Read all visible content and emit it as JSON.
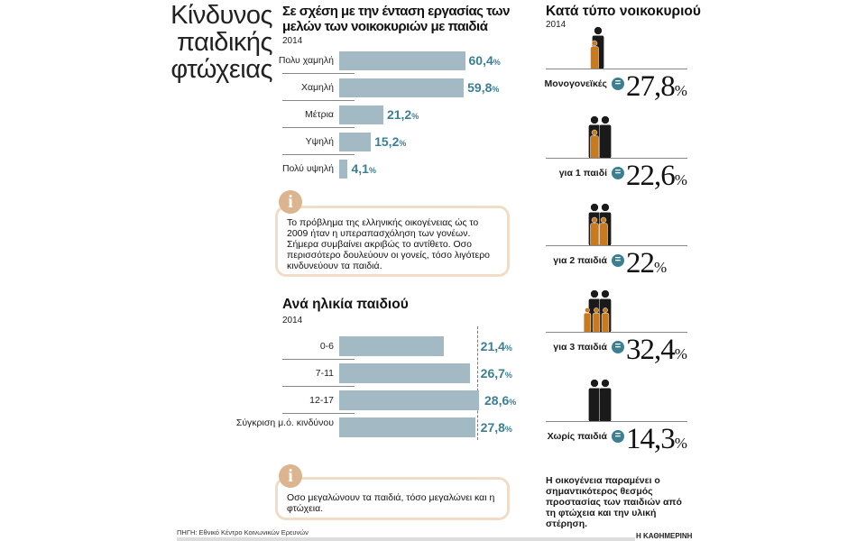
{
  "title": "Κίνδυνος παιδικής φτώχειας",
  "colors": {
    "bar": "#a3b9c4",
    "value": "#3b7f91",
    "info_border": "#f1dcc8",
    "info_icon": "#dcb48f",
    "child": "#c97a1e",
    "adult": "#1a1a1a"
  },
  "chart_data": [
    {
      "type": "bar",
      "orientation": "horizontal",
      "title": "Σε σχέση με την ένταση εργασίας των μελών των νοικοκυριών με παιδιά",
      "subtitle": "2014",
      "categories": [
        "Πολυ χαμηλή",
        "Χαμηλή",
        "Μέτρια",
        "Υψηλή",
        "Πολύ υψηλή"
      ],
      "values": [
        60.4,
        59.8,
        21.2,
        15.2,
        4.1
      ],
      "labels": [
        "60,4",
        "59,8",
        "21,2",
        "15,2",
        "4,1"
      ],
      "unit": "%"
    },
    {
      "type": "bar",
      "orientation": "horizontal",
      "title": "Ανά ηλικία παιδιού",
      "subtitle": "2014",
      "categories": [
        "0-6",
        "7-11",
        "12-17",
        "Σύγκριση μ.ό. κινδύνου"
      ],
      "values": [
        21.4,
        26.7,
        28.6,
        27.8
      ],
      "labels": [
        "21,4",
        "26,7",
        "28,6",
        "27,8"
      ],
      "unit": "%",
      "reference_line": 27.8
    },
    {
      "type": "table",
      "title": "Κατά τύπο νοικοκυριού",
      "subtitle": "2014",
      "categories": [
        "Μονογονεϊκές",
        "για 1 παιδί",
        "για 2 παιδιά",
        "για 3 παιδιά",
        "Χωρίς παιδιά"
      ],
      "values": [
        27.8,
        22.6,
        22,
        32.4,
        14.3
      ],
      "labels": [
        "27,8",
        "22,6",
        "22",
        "32,4",
        "14,3"
      ],
      "unit": "%",
      "icons": [
        {
          "adults": 1,
          "children": 1
        },
        {
          "adults": 2,
          "children": 1
        },
        {
          "adults": 2,
          "children": 2
        },
        {
          "adults": 2,
          "children": 3
        },
        {
          "adults": 2,
          "children": 0
        }
      ]
    }
  ],
  "info1": "Το πρόβλημα της ελληνικής οικογένειας ώς το 2009 ήταν η υπεραπασχόληση των γονέων. Σήμερα συμβαίνει ακριβώς το αντίθετο. Οσο περισσότερο δουλεύουν οι γονείς, τόσο λιγότερο κινδυνεύουν τα παιδιά.",
  "info2": "Οσο μεγαλώνουν τα παιδιά, τόσο μεγαλώνει και η φτώχεια.",
  "info_icon": "i",
  "equals": "=",
  "note": "Η οικογένεια παραμένει ο σημαντικότερος θεσμός προστασίας των παιδιών από τη φτώχεια και την υλική στέρηση.",
  "source": "ΠΗΓΗ: Εθνικό Κέντρο Κοινωνικών Ερευνών",
  "brand": "Η ΚΑΘΗΜΕΡΙΝΗ"
}
